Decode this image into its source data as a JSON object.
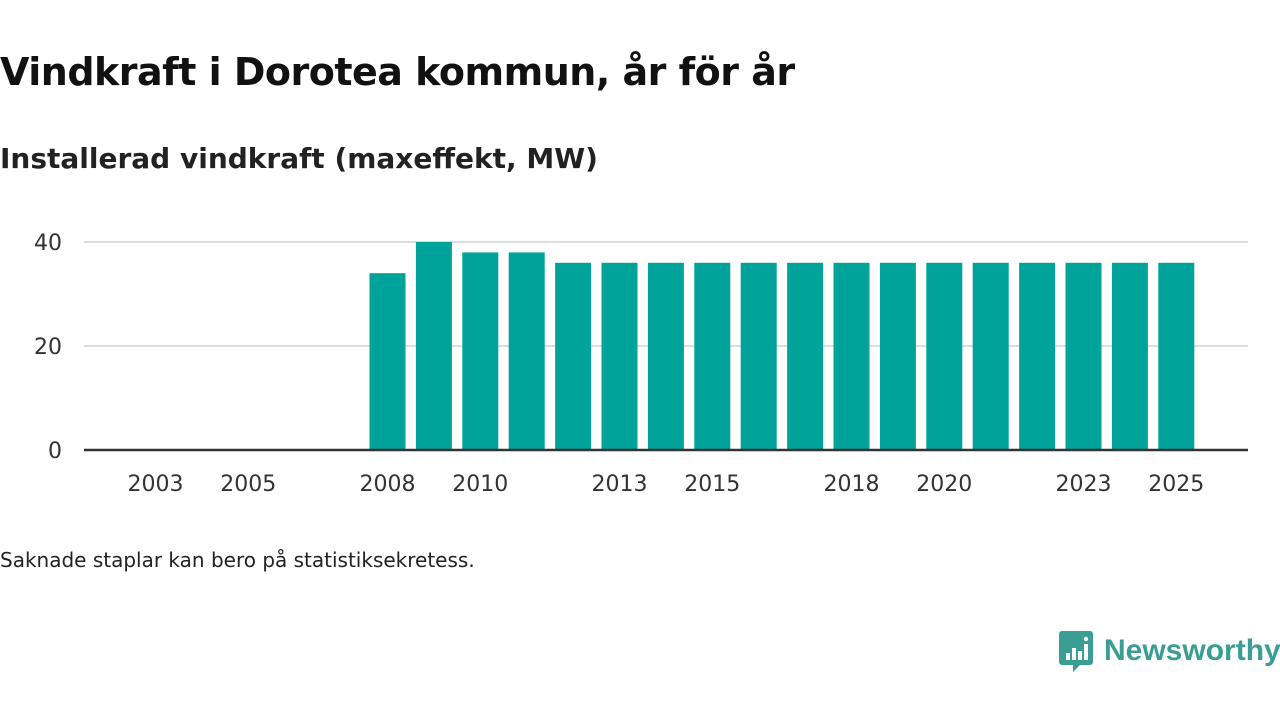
{
  "chart_data": {
    "type": "bar",
    "title": "Vindkraft i Dorotea kommun, år för år",
    "subtitle": "Installerad vindkraft (maxeffekt, MW)",
    "xlabel": "",
    "ylabel": "",
    "categories": [
      "2003",
      "2004",
      "2005",
      "2006",
      "2007",
      "2008",
      "2009",
      "2010",
      "2011",
      "2012",
      "2013",
      "2014",
      "2015",
      "2016",
      "2017",
      "2018",
      "2019",
      "2020",
      "2021",
      "2022",
      "2023",
      "2024",
      "2025"
    ],
    "values": [
      null,
      null,
      null,
      null,
      null,
      34,
      40,
      38,
      38,
      36,
      36,
      36,
      36,
      36,
      36,
      36,
      36,
      36,
      36,
      36,
      36,
      36,
      36
    ],
    "x_tick_labels": [
      "2003",
      "2005",
      "2008",
      "2010",
      "2013",
      "2015",
      "2018",
      "2020",
      "2023",
      "2025"
    ],
    "y_ticks": [
      0,
      20,
      40
    ],
    "ylim": [
      0,
      40
    ],
    "grid": true,
    "bar_color": "#00a39a"
  },
  "footnote": "Saknade staplar kan bero på statistiksekretess.",
  "brand": {
    "name": "Newsworthy",
    "color": "#3a9e95",
    "icon": "newsworthy-logo-icon"
  }
}
